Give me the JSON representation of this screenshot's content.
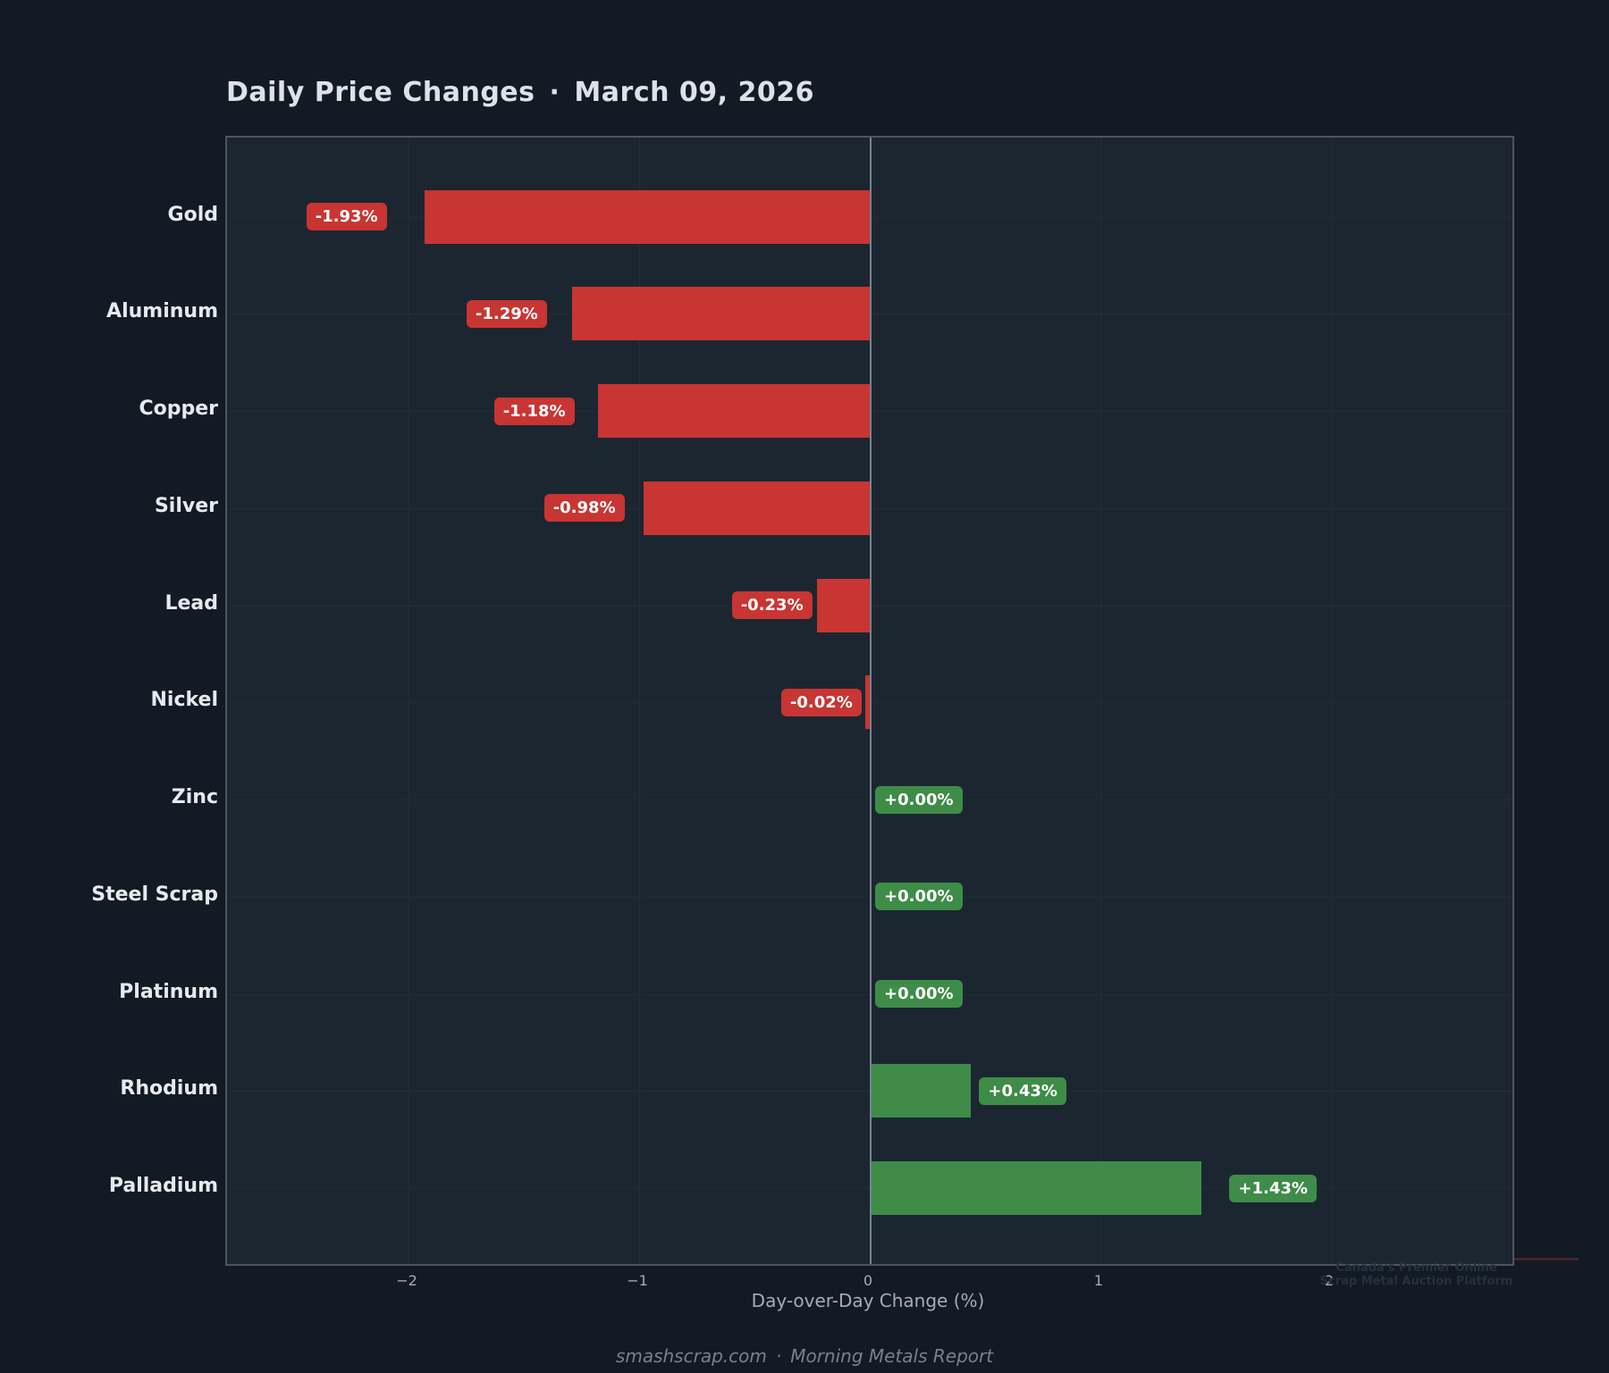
{
  "title": {
    "text": "Daily Price Changes",
    "separator": "·",
    "date": "March 09, 2026"
  },
  "chart_data": {
    "type": "bar",
    "orientation": "horizontal",
    "title": "Daily Price Changes · March 09, 2026",
    "categories": [
      "Gold",
      "Aluminum",
      "Copper",
      "Silver",
      "Lead",
      "Nickel",
      "Zinc",
      "Steel Scrap",
      "Platinum",
      "Rhodium",
      "Palladium"
    ],
    "values": [
      -1.93,
      -1.29,
      -1.18,
      -0.98,
      -0.23,
      -0.02,
      0.0,
      0.0,
      0.0,
      0.43,
      1.43
    ],
    "value_labels": [
      "-1.93%",
      "-1.29%",
      "-1.18%",
      "-0.98%",
      "-0.23%",
      "-0.02%",
      "+0.00%",
      "+0.00%",
      "+0.00%",
      "+0.43%",
      "+1.43%"
    ],
    "xlabel": "Day-over-Day Change (%)",
    "xticks": [
      -2,
      -1,
      0,
      1,
      2
    ],
    "xlim": [
      -2.79,
      2.79
    ],
    "grid": true,
    "zero_line": true,
    "legend": "none",
    "colors": {
      "negative": "#c83532",
      "positive": "#3e8c48",
      "plot_background": "#1c2631",
      "figure_background": "#121a23",
      "gridline": "#232e3a",
      "zero_line": "#76838f"
    }
  },
  "footer": {
    "site": "smashscrap.com",
    "separator": "·",
    "report": "Morning Metals Report"
  },
  "watermark": {
    "line1": "Canada's Premier Online",
    "line2": "Scrap Metal Auction Platform"
  }
}
